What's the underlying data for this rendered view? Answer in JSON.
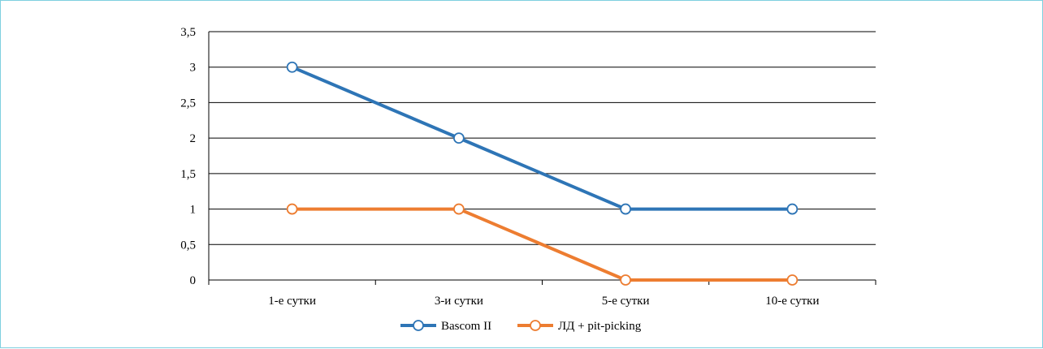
{
  "chart_data": {
    "type": "line",
    "categories": [
      "1-е сутки",
      "3-и сутки",
      "5-е сутки",
      "10-е сутки"
    ],
    "series": [
      {
        "name": "Bascom II",
        "values": [
          3,
          2,
          1,
          1
        ],
        "color": "#2e75b6"
      },
      {
        "name": "ЛД + pit-picking",
        "values": [
          1,
          1,
          0,
          0
        ],
        "color": "#ed7d31"
      }
    ],
    "y_ticks": [
      "0",
      "0,5",
      "1",
      "1,5",
      "2",
      "2,5",
      "3",
      "3,5"
    ],
    "ylim": [
      0,
      3.5
    ],
    "grid": true,
    "legend_position": "bottom",
    "marker": "open-circle"
  }
}
